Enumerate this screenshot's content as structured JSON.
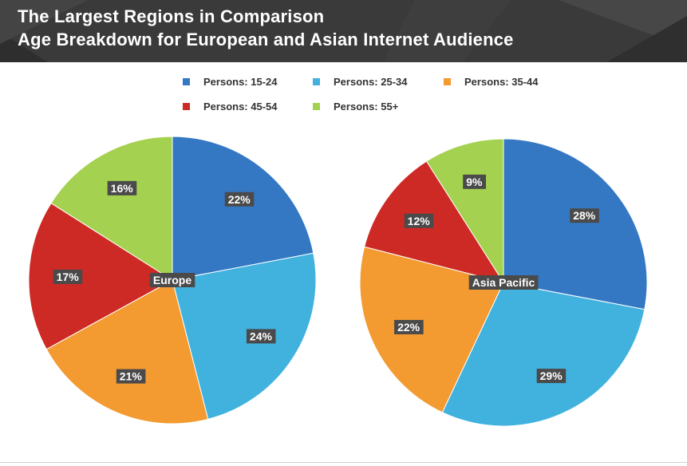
{
  "header": {
    "title_line1": "The Largest Regions in Comparison",
    "title_line2": "Age Breakdown for European and Asian Internet Audience",
    "background": "#3a3a3a"
  },
  "legend": {
    "items": [
      {
        "label": "Persons: 15-24",
        "color": "#3478c4"
      },
      {
        "label": "Persons: 25-34",
        "color": "#41b2de"
      },
      {
        "label": "Persons: 35-44",
        "color": "#f39a31"
      },
      {
        "label": "Persons: 45-54",
        "color": "#cd2a25"
      },
      {
        "label": "Persons: 55+",
        "color": "#a4d14f"
      }
    ]
  },
  "chart_data": [
    {
      "type": "pie",
      "title": "Europe",
      "categories": [
        "Persons: 15-24",
        "Persons: 25-34",
        "Persons: 35-44",
        "Persons: 45-54",
        "Persons: 55+"
      ],
      "values": [
        22,
        24,
        21,
        17,
        16
      ],
      "labels": [
        "22%",
        "24%",
        "21%",
        "17%",
        "16%"
      ],
      "colors": [
        "#3478c4",
        "#41b2de",
        "#f39a31",
        "#cd2a25",
        "#a4d14f"
      ],
      "legend_placement": "top"
    },
    {
      "type": "pie",
      "title": "Asia Pacific",
      "categories": [
        "Persons: 15-24",
        "Persons: 25-34",
        "Persons: 35-44",
        "Persons: 45-54",
        "Persons: 55+"
      ],
      "values": [
        28,
        29,
        22,
        12,
        9
      ],
      "labels": [
        "28%",
        "29%",
        "22%",
        "12%",
        "9%"
      ],
      "colors": [
        "#3478c4",
        "#41b2de",
        "#f39a31",
        "#cd2a25",
        "#a4d14f"
      ],
      "legend_placement": "top"
    }
  ]
}
